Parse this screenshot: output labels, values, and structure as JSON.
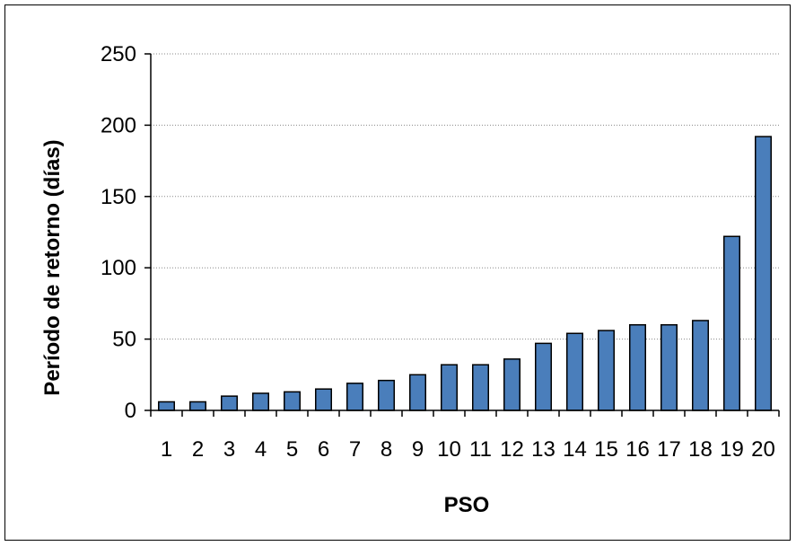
{
  "chart_data": {
    "type": "bar",
    "title": "",
    "xlabel": "PSO",
    "ylabel": "Período de retorno (días)",
    "categories": [
      "1",
      "2",
      "3",
      "4",
      "5",
      "6",
      "7",
      "8",
      "9",
      "10",
      "11",
      "12",
      "13",
      "14",
      "15",
      "16",
      "17",
      "18",
      "19",
      "20"
    ],
    "values": [
      6,
      6,
      10,
      12,
      13,
      15,
      19,
      21,
      25,
      32,
      32,
      36,
      47,
      54,
      56,
      60,
      60,
      63,
      122,
      192
    ],
    "ylim": [
      0,
      250
    ],
    "yticks": [
      0,
      50,
      100,
      150,
      200,
      250
    ],
    "grid": "horizontal dotted",
    "legend": "none",
    "colors": {
      "bar_fill": "#4A7EBB",
      "bar_stroke": "#000000",
      "grid": "#888888"
    }
  }
}
